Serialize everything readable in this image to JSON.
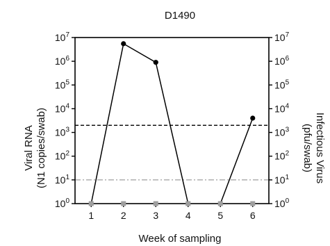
{
  "chart_data": {
    "type": "line",
    "title": "D1490",
    "xlabel": "Week of sampling",
    "ylabel_left": [
      "Viral RNA",
      "(N1 copies/swab)"
    ],
    "ylabel_right": [
      "Infectious Virus",
      "(pfu/swab)"
    ],
    "x": [
      1,
      2,
      3,
      4,
      5,
      6
    ],
    "xlim": [
      0.5,
      6.5
    ],
    "yscale": "log",
    "ylim": [
      1,
      10000000
    ],
    "yticks": [
      {
        "base": "10",
        "exp": "0"
      },
      {
        "base": "10",
        "exp": "1"
      },
      {
        "base": "10",
        "exp": "2"
      },
      {
        "base": "10",
        "exp": "3"
      },
      {
        "base": "10",
        "exp": "4"
      },
      {
        "base": "10",
        "exp": "5"
      },
      {
        "base": "10",
        "exp": "6"
      },
      {
        "base": "10",
        "exp": "7"
      }
    ],
    "series": [
      {
        "axis": "left",
        "marker": "circle",
        "color": "#000000",
        "segments": [
          [
            0,
            1,
            2,
            3
          ],
          [
            4,
            5
          ]
        ],
        "values": [
          1,
          5500000,
          900000,
          1,
          1,
          4000
        ]
      },
      {
        "axis": "right",
        "marker": "square",
        "color": "#9e9e9e",
        "segments": [],
        "values": [
          1,
          1,
          1,
          1,
          1,
          1
        ]
      }
    ],
    "reference_lines": [
      {
        "id": "ref-dashed",
        "y": 2000,
        "style": "dashed",
        "color": "#000000"
      },
      {
        "id": "ref-dashdot",
        "y": 10,
        "style": "dashdot",
        "color": "#888888"
      }
    ],
    "grid": false,
    "legend": "none"
  }
}
